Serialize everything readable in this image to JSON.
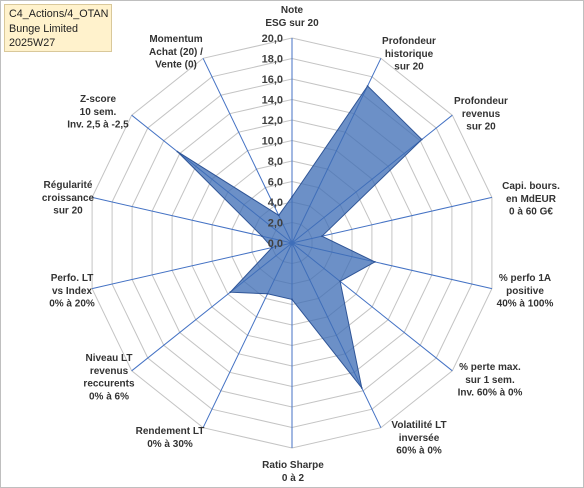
{
  "title_box": {
    "line1": "C4_Actions/4_OTAN",
    "line2": "Bunge Limited",
    "line3": "2025W27"
  },
  "chart_data": {
    "type": "radar",
    "categories": [
      [
        "Note",
        "ESG sur 20"
      ],
      [
        "Profondeur",
        "historique",
        "sur 20"
      ],
      [
        "Profondeur",
        "revenus",
        "sur 20"
      ],
      [
        "Capi. bours.",
        "en MdEUR",
        "0 à 60 G€"
      ],
      [
        "% perfo 1A",
        "positive",
        "40% à 100%"
      ],
      [
        "% perte max.",
        "sur 1 sem.",
        "Inv. 60% à 0%"
      ],
      [
        "Volatilité LT",
        "inversée",
        "60% à 0%"
      ],
      [
        "Ratio Sharpe",
        "0 à 2"
      ],
      [
        "Rendement LT",
        "0% à 30%"
      ],
      [
        "Niveau LT",
        "revenus",
        "reccurents",
        "0% à 6%"
      ],
      [
        "Perfo. LT",
        "vs Index",
        "0% à 20%"
      ],
      [
        "Régularité",
        "croissance",
        "sur 20"
      ],
      [
        "Z-score",
        "10 sem.",
        "Inv. 2,5 à -2,5"
      ],
      [
        "Momentum",
        "Achat (20) /",
        "Vente (0)"
      ]
    ],
    "values": [
      4.5,
      17,
      16.2,
      3,
      8.3,
      6,
      15.7,
      5.5,
      5.5,
      7.7,
      2,
      3,
      14.3,
      3
    ],
    "range": [
      0,
      20
    ],
    "tick_labels": [
      "0,0",
      "2,0",
      "4,0",
      "6,0",
      "8,0",
      "10,0",
      "12,0",
      "14,0",
      "16,0",
      "18,0",
      "20,0"
    ],
    "grid": true,
    "legend": false,
    "series_color": "#3E6DB5",
    "series_edge_color": "#2F5597",
    "spoke_color": "#4472C4",
    "grid_color": "#C4C4C4"
  }
}
